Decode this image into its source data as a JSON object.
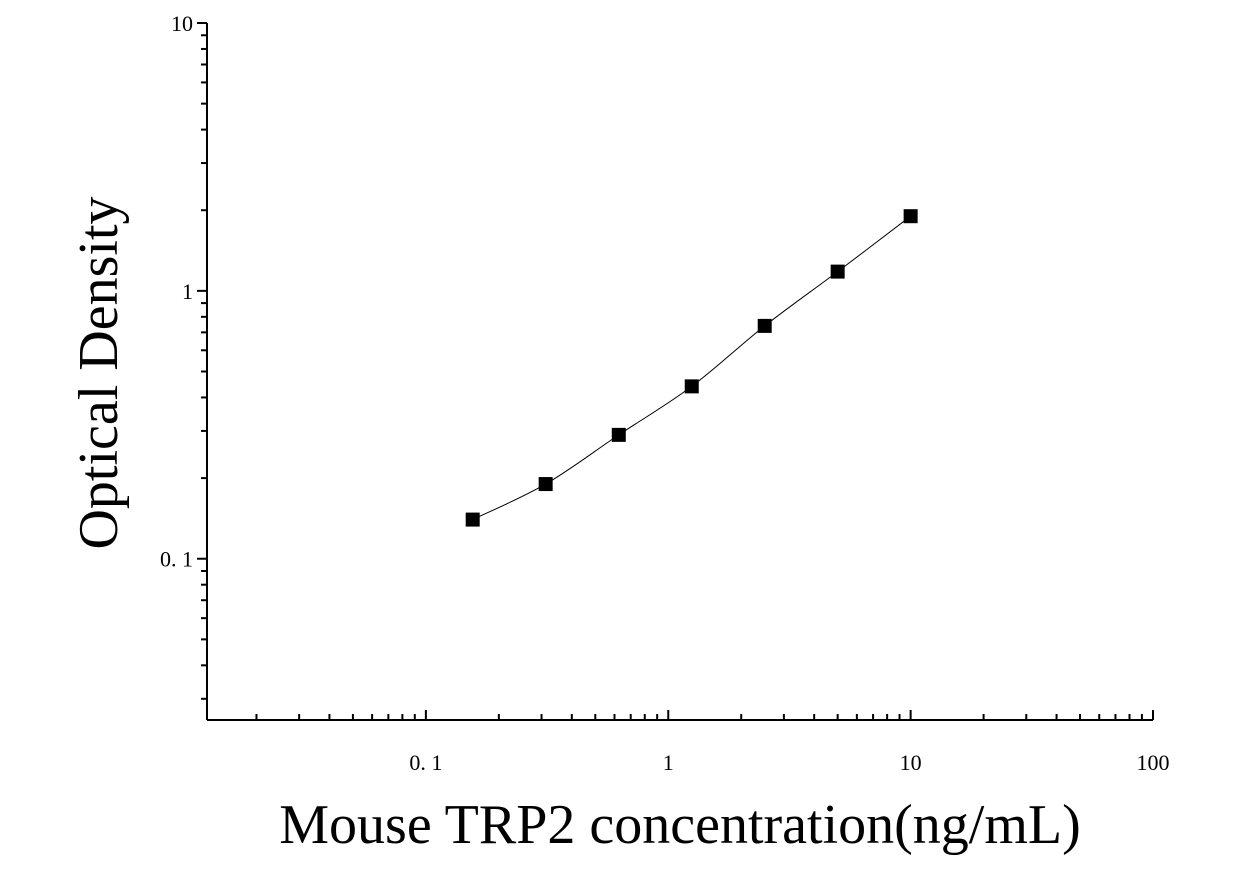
{
  "chart_data": {
    "type": "scatter",
    "xlabel": "Mouse TRP2 concentration(ng/mL)",
    "ylabel": "Optical Density",
    "xscale": "log",
    "yscale": "log",
    "xlim": [
      0.0125,
      100
    ],
    "ylim": [
      0.025,
      10
    ],
    "x_ticks": [
      0.1,
      1,
      10,
      100
    ],
    "x_tick_labels": [
      "0. 1",
      "1",
      "10",
      "100"
    ],
    "y_ticks": [
      0.1,
      1,
      10
    ],
    "y_tick_labels": [
      "0. 1",
      "1",
      "10"
    ],
    "grid": false,
    "series": [
      {
        "marker": "square",
        "x": [
          0.156,
          0.312,
          0.625,
          1.25,
          2.5,
          5,
          10
        ],
        "y": [
          0.14,
          0.19,
          0.29,
          0.44,
          0.74,
          1.18,
          1.9
        ]
      }
    ],
    "fit_line": true
  }
}
